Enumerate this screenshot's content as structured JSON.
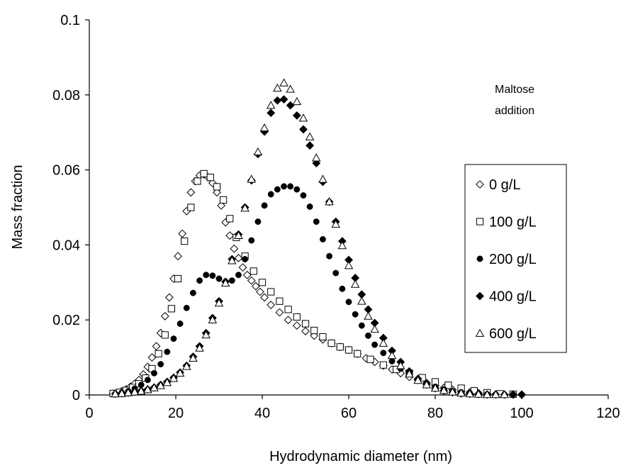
{
  "chart_data": {
    "type": "scatter",
    "xlabel": "Hydrodynamic diameter (nm)",
    "ylabel": "Mass fraction",
    "xlim": [
      0,
      120
    ],
    "ylim": [
      0,
      0.1
    ],
    "xticks": [
      0,
      20,
      40,
      60,
      80,
      100,
      120
    ],
    "yticks": [
      0,
      0.02,
      0.04,
      0.06,
      0.08,
      0.1
    ],
    "xtick_labels": [
      "0",
      "20",
      "40",
      "60",
      "80",
      "100",
      "120"
    ],
    "ytick_labels": [
      "0",
      "0.02",
      "0.04",
      "0.06",
      "0.08",
      "0.1"
    ],
    "grid": false,
    "legend_position": "right",
    "annotation": [
      "Maltose",
      "addition"
    ],
    "series": [
      {
        "name": "0 g/L",
        "marker": "diamond-open",
        "x": [
          5.5,
          6.5,
          7.5,
          8.5,
          9.5,
          10.5,
          11.5,
          12.5,
          13.5,
          14.5,
          15.5,
          16.5,
          17.5,
          18.5,
          19.5,
          20.5,
          21.5,
          22.5,
          23.5,
          24.5,
          25.5,
          26.5,
          27.5,
          28.5,
          29.5,
          30.5,
          31.5,
          32.5,
          33.5,
          34.5,
          35.5,
          36.5,
          37.5,
          38.5,
          39.5,
          40.5,
          42,
          44,
          46,
          48,
          50,
          52,
          54,
          56,
          58,
          60,
          62,
          64,
          66,
          68,
          70,
          72,
          74,
          76,
          78,
          80,
          82,
          84,
          86,
          88,
          90,
          92,
          94,
          96,
          98,
          100
        ],
        "values": [
          0.0004,
          0.0006,
          0.001,
          0.0015,
          0.0022,
          0.003,
          0.004,
          0.0055,
          0.0075,
          0.01,
          0.013,
          0.0165,
          0.021,
          0.026,
          0.031,
          0.037,
          0.043,
          0.049,
          0.054,
          0.057,
          0.0585,
          0.0588,
          0.058,
          0.0565,
          0.054,
          0.0505,
          0.046,
          0.0425,
          0.039,
          0.0365,
          0.034,
          0.032,
          0.0305,
          0.029,
          0.0275,
          0.026,
          0.024,
          0.022,
          0.02,
          0.0185,
          0.017,
          0.0158,
          0.0148,
          0.0138,
          0.0128,
          0.012,
          0.011,
          0.0098,
          0.0088,
          0.0078,
          0.0068,
          0.0058,
          0.0048,
          0.004,
          0.0032,
          0.0025,
          0.0019,
          0.0014,
          0.001,
          0.0007,
          0.0005,
          0.0003,
          0.0002,
          0.0001,
          0.0001,
          0.0001
        ]
      },
      {
        "name": "100 g/L",
        "marker": "square-open",
        "x": [
          5.5,
          7,
          8.5,
          10,
          11.5,
          13,
          14.5,
          16,
          17.5,
          19,
          20.5,
          22,
          23.5,
          25,
          26.5,
          28,
          29.5,
          31,
          32.5,
          34,
          36,
          38,
          40,
          42,
          44,
          46,
          48,
          50,
          52,
          54,
          56,
          58,
          60,
          62,
          65,
          68,
          71,
          74,
          77,
          80,
          83,
          86,
          89,
          92,
          95,
          98
        ],
        "values": [
          0.0004,
          0.0007,
          0.0012,
          0.002,
          0.003,
          0.0045,
          0.007,
          0.011,
          0.016,
          0.023,
          0.031,
          0.041,
          0.05,
          0.057,
          0.059,
          0.058,
          0.0555,
          0.052,
          0.047,
          0.042,
          0.037,
          0.033,
          0.03,
          0.0275,
          0.025,
          0.0228,
          0.0208,
          0.019,
          0.0172,
          0.0155,
          0.0138,
          0.0128,
          0.012,
          0.011,
          0.0095,
          0.008,
          0.0068,
          0.0058,
          0.0046,
          0.0035,
          0.0026,
          0.0018,
          0.0011,
          0.0006,
          0.0003,
          0.0002
        ]
      },
      {
        "name": "200 g/L",
        "marker": "circle-filled",
        "x": [
          6,
          7.5,
          9,
          10.5,
          12,
          13.5,
          15,
          16.5,
          18,
          19.5,
          21,
          22.5,
          24,
          25.5,
          27,
          28.5,
          30,
          31.5,
          33,
          34.5,
          36,
          37.5,
          39,
          40.5,
          42,
          43.5,
          45,
          46.5,
          48,
          49.5,
          51,
          52.5,
          54,
          55.5,
          57,
          58.5,
          60,
          61.5,
          63,
          64.5,
          66,
          68,
          70,
          72,
          74,
          76,
          78,
          80,
          82,
          84,
          86,
          88,
          90,
          92,
          94,
          96,
          98,
          100
        ],
        "values": [
          0.0003,
          0.0006,
          0.001,
          0.0017,
          0.0027,
          0.004,
          0.0058,
          0.0082,
          0.0115,
          0.015,
          0.019,
          0.0232,
          0.0272,
          0.0305,
          0.032,
          0.0318,
          0.031,
          0.0302,
          0.0305,
          0.032,
          0.0362,
          0.0412,
          0.0462,
          0.0505,
          0.0535,
          0.0548,
          0.0556,
          0.0556,
          0.0548,
          0.0532,
          0.0502,
          0.0462,
          0.0415,
          0.037,
          0.0325,
          0.0283,
          0.0248,
          0.0215,
          0.0185,
          0.0158,
          0.0134,
          0.0112,
          0.009,
          0.007,
          0.0055,
          0.0042,
          0.0031,
          0.0022,
          0.0015,
          0.001,
          0.0007,
          0.0005,
          0.0003,
          0.0002,
          0.0001,
          0.0001,
          0.0001,
          0.0001
        ]
      },
      {
        "name": "400 g/L",
        "marker": "diamond-filled",
        "x": [
          6,
          7.5,
          9,
          10.5,
          12,
          13.5,
          15,
          16.5,
          18,
          19.5,
          21,
          22.5,
          24,
          25.5,
          27,
          28.5,
          30,
          31.5,
          33,
          34.5,
          36,
          37.5,
          39,
          40.5,
          42,
          43.5,
          45,
          46.5,
          48,
          49.5,
          51,
          52.5,
          54,
          55.5,
          57,
          58.5,
          60,
          61.5,
          63,
          64.5,
          66,
          68,
          70,
          72,
          74,
          76,
          78,
          80,
          82,
          84,
          86,
          88,
          90,
          92,
          94,
          96,
          98,
          100
        ],
        "values": [
          0.0003,
          0.0004,
          0.0006,
          0.0008,
          0.0011,
          0.0015,
          0.002,
          0.0027,
          0.0035,
          0.0046,
          0.006,
          0.0078,
          0.0102,
          0.013,
          0.0165,
          0.0205,
          0.025,
          0.0302,
          0.0362,
          0.0428,
          0.05,
          0.0572,
          0.0642,
          0.0702,
          0.0752,
          0.0785,
          0.0788,
          0.0772,
          0.0745,
          0.0708,
          0.0665,
          0.0618,
          0.0568,
          0.0515,
          0.0462,
          0.041,
          0.036,
          0.0312,
          0.0268,
          0.0228,
          0.0192,
          0.0152,
          0.0118,
          0.0088,
          0.0063,
          0.0043,
          0.0028,
          0.0018,
          0.0011,
          0.0007,
          0.0004,
          0.0003,
          0.0002,
          0.0001,
          0.0001,
          0.0001,
          0.0001,
          0.0001
        ]
      },
      {
        "name": "600 g/L",
        "marker": "triangle-open",
        "x": [
          6,
          7.5,
          9,
          10.5,
          12,
          13.5,
          15,
          16.5,
          18,
          19.5,
          21,
          22.5,
          24,
          25.5,
          27,
          28.5,
          30,
          31.5,
          33,
          34.5,
          36,
          37.5,
          39,
          40.5,
          42,
          43.5,
          45,
          46.5,
          48,
          49.5,
          51,
          52.5,
          54,
          55.5,
          57,
          58.5,
          60,
          61.5,
          63,
          64.5,
          66,
          68,
          70,
          72,
          74,
          76,
          78,
          80,
          82,
          84,
          86,
          88,
          90,
          92,
          94,
          96
        ],
        "values": [
          0.0003,
          0.0004,
          0.0006,
          0.0008,
          0.001,
          0.0014,
          0.0019,
          0.0025,
          0.0033,
          0.0044,
          0.0058,
          0.0076,
          0.0098,
          0.0125,
          0.016,
          0.02,
          0.0245,
          0.0298,
          0.0358,
          0.0425,
          0.0498,
          0.0575,
          0.0648,
          0.0712,
          0.0772,
          0.0818,
          0.0832,
          0.0815,
          0.0782,
          0.0738,
          0.0688,
          0.0632,
          0.0575,
          0.0515,
          0.0455,
          0.0398,
          0.0345,
          0.0295,
          0.025,
          0.021,
          0.0175,
          0.0138,
          0.0105,
          0.0078,
          0.0056,
          0.0039,
          0.0027,
          0.0018,
          0.0012,
          0.0008,
          0.0005,
          0.0003,
          0.0002,
          0.0001,
          0.0001,
          0.0001
        ]
      }
    ]
  }
}
